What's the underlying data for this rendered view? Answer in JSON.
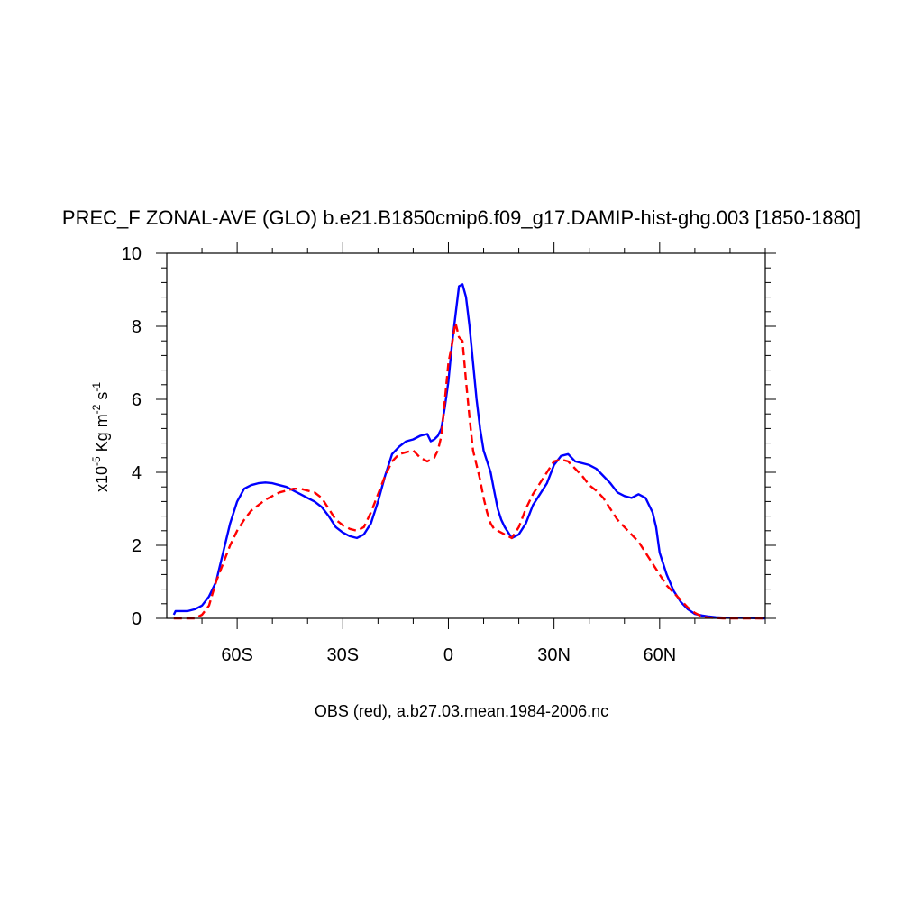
{
  "chart_data": {
    "type": "line",
    "title": "PREC_F ZONAL-AVE (GLO) b.e21.B1850cmip6.f09_g17.DAMIP-hist-ghg.003 [1850-1880]",
    "xlabel": "OBS (red), a.b27.03.mean.1984-2006.nc",
    "ylabel": {
      "prefix": "x10",
      "exp": "-5",
      "unit": " Kg m",
      "unit_exp": "-2",
      "unit2": " s",
      "unit2_exp": "-1"
    },
    "xlim": [
      -80,
      90
    ],
    "ylim": [
      0,
      10
    ],
    "x_ticks": [
      {
        "value": -60,
        "label": "60S"
      },
      {
        "value": -30,
        "label": "30S"
      },
      {
        "value": 0,
        "label": "0"
      },
      {
        "value": 30,
        "label": "30N"
      },
      {
        "value": 60,
        "label": "60N"
      }
    ],
    "y_ticks": [
      {
        "value": 0,
        "label": "0"
      },
      {
        "value": 2,
        "label": "2"
      },
      {
        "value": 4,
        "label": "4"
      },
      {
        "value": 6,
        "label": "6"
      },
      {
        "value": 8,
        "label": "8"
      },
      {
        "value": 10,
        "label": "10"
      }
    ],
    "series": [
      {
        "color": "#0000ff",
        "dash": "solid",
        "x": [
          -78,
          -77.5,
          -76,
          -74,
          -72,
          -70,
          -68,
          -66,
          -64,
          -62,
          -60,
          -58,
          -56,
          -54,
          -52,
          -50,
          -48,
          -46,
          -44,
          -42,
          -40,
          -38,
          -36,
          -34,
          -32,
          -30,
          -28,
          -26,
          -24,
          -22,
          -20,
          -18,
          -16,
          -14,
          -12,
          -10,
          -8,
          -6,
          -5,
          -4,
          -3,
          -2,
          -1,
          0,
          1,
          2,
          3,
          4,
          5,
          6,
          7,
          8,
          9,
          10,
          11,
          12,
          13,
          14,
          15,
          16,
          18,
          20,
          22,
          24,
          26,
          28,
          30,
          32,
          34,
          36,
          38,
          40,
          42,
          44,
          46,
          48,
          50,
          52,
          54,
          56,
          57,
          58,
          59,
          60,
          62,
          64,
          66,
          68,
          70,
          72,
          74,
          76,
          78,
          80,
          85,
          90
        ],
        "y": [
          0.1,
          0.2,
          0.2,
          0.2,
          0.25,
          0.35,
          0.6,
          1.0,
          1.8,
          2.6,
          3.2,
          3.55,
          3.65,
          3.7,
          3.72,
          3.7,
          3.65,
          3.6,
          3.5,
          3.4,
          3.3,
          3.2,
          3.05,
          2.8,
          2.5,
          2.35,
          2.25,
          2.2,
          2.3,
          2.6,
          3.2,
          3.9,
          4.5,
          4.7,
          4.85,
          4.9,
          5.0,
          5.05,
          4.85,
          4.9,
          5.0,
          5.2,
          5.8,
          6.5,
          7.5,
          8.3,
          9.1,
          9.15,
          8.8,
          8.0,
          7.0,
          6.0,
          5.2,
          4.6,
          4.3,
          4.0,
          3.5,
          3.0,
          2.7,
          2.5,
          2.2,
          2.3,
          2.6,
          3.1,
          3.4,
          3.7,
          4.2,
          4.45,
          4.5,
          4.3,
          4.25,
          4.2,
          4.1,
          3.9,
          3.7,
          3.45,
          3.35,
          3.3,
          3.4,
          3.3,
          3.1,
          2.9,
          2.5,
          1.8,
          1.2,
          0.75,
          0.45,
          0.25,
          0.12,
          0.08,
          0.05,
          0.03,
          0.02,
          0.02,
          0.01,
          0.0
        ]
      },
      {
        "color": "#ff0000",
        "dash": "dashed",
        "x": [
          -78,
          -76,
          -74,
          -72,
          -70,
          -68,
          -66,
          -64,
          -62,
          -60,
          -58,
          -56,
          -54,
          -52,
          -50,
          -48,
          -46,
          -44,
          -42,
          -40,
          -38,
          -36,
          -34,
          -32,
          -30,
          -28,
          -26,
          -24,
          -22,
          -20,
          -18,
          -16,
          -14,
          -12,
          -10,
          -8,
          -6,
          -4,
          -3,
          -2,
          -1,
          0,
          1,
          2,
          3,
          4,
          5,
          6,
          7,
          8,
          9,
          10,
          11,
          12,
          13,
          14,
          16,
          18,
          20,
          22,
          24,
          26,
          28,
          30,
          32,
          34,
          36,
          38,
          40,
          42,
          44,
          46,
          48,
          50,
          52,
          54,
          56,
          58,
          60,
          62,
          64,
          66,
          68,
          70,
          72,
          74,
          76,
          78,
          80,
          85,
          90
        ],
        "y": [
          0.0,
          0.0,
          0.0,
          0.0,
          0.1,
          0.35,
          1.0,
          1.5,
          2.0,
          2.4,
          2.7,
          2.95,
          3.1,
          3.25,
          3.35,
          3.45,
          3.5,
          3.55,
          3.55,
          3.5,
          3.45,
          3.3,
          3.0,
          2.7,
          2.55,
          2.45,
          2.4,
          2.5,
          2.9,
          3.4,
          3.9,
          4.3,
          4.5,
          4.55,
          4.6,
          4.4,
          4.3,
          4.4,
          4.6,
          5.0,
          6.0,
          7.0,
          7.5,
          8.1,
          7.7,
          7.6,
          6.5,
          5.5,
          4.6,
          4.2,
          3.8,
          3.3,
          2.9,
          2.6,
          2.45,
          2.4,
          2.3,
          2.2,
          2.5,
          3.0,
          3.4,
          3.7,
          4.0,
          4.3,
          4.35,
          4.3,
          4.1,
          3.9,
          3.65,
          3.5,
          3.3,
          3.0,
          2.7,
          2.5,
          2.3,
          2.1,
          1.8,
          1.5,
          1.2,
          0.9,
          0.7,
          0.5,
          0.3,
          0.15,
          0.05,
          0.02,
          0.01,
          0.0,
          0.0,
          0.0,
          0.0
        ]
      }
    ]
  }
}
